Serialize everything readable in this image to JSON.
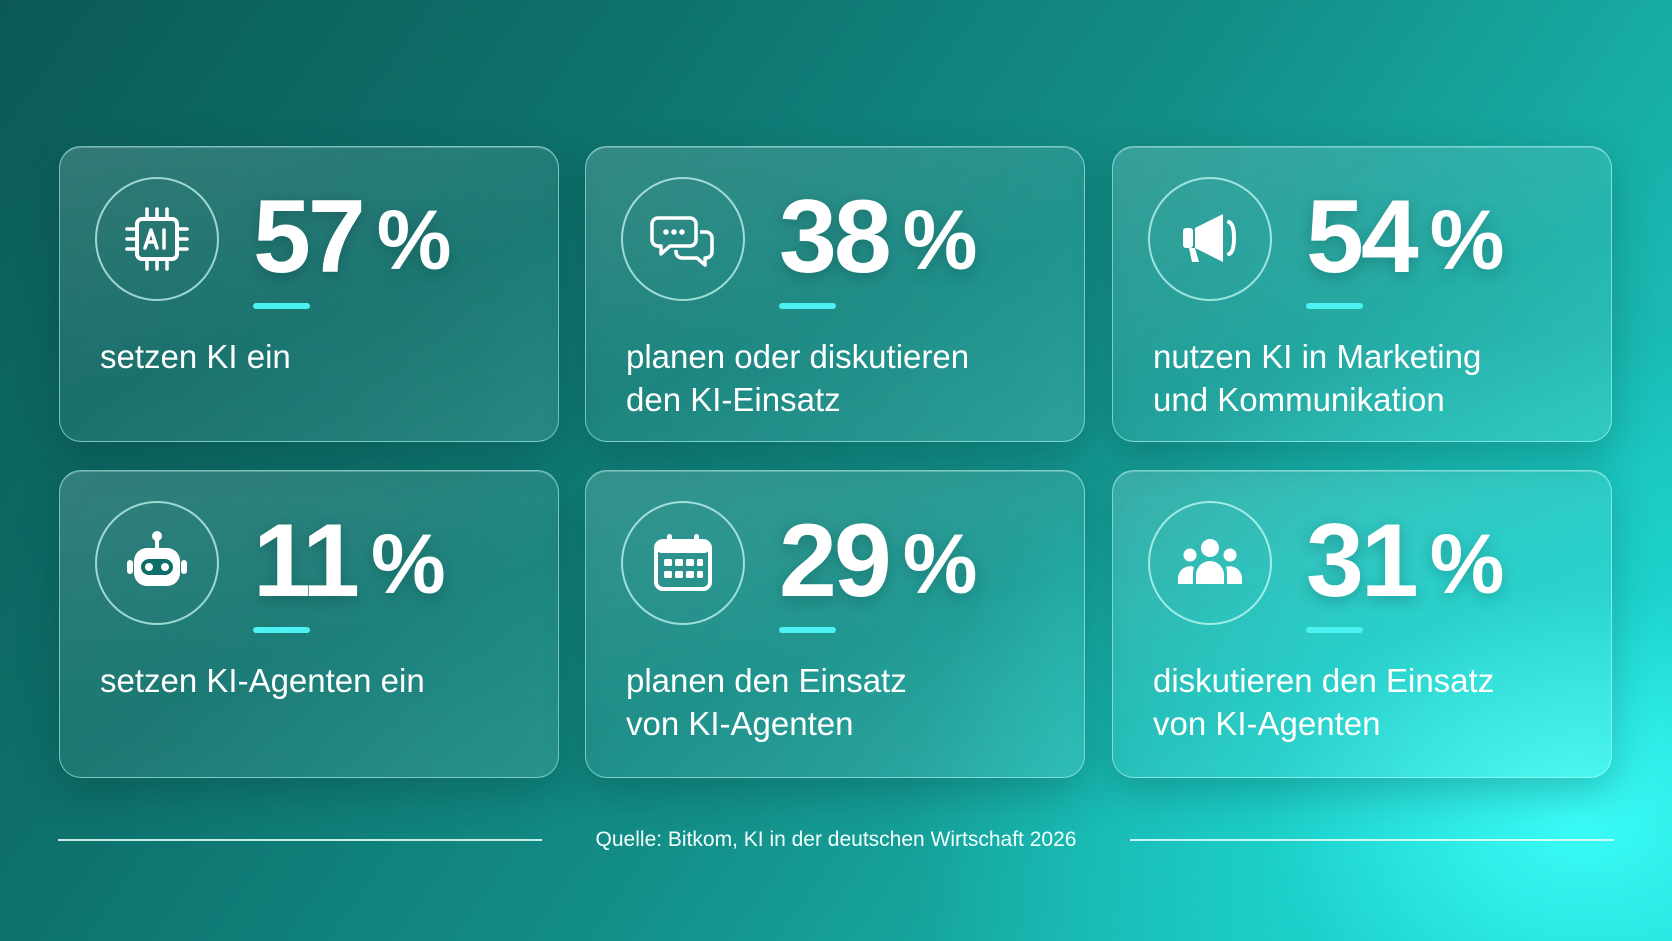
{
  "stats": [
    {
      "icon": "ai-chip-icon",
      "value": "57",
      "unit": "%",
      "lines": [
        "setzen KI ein"
      ]
    },
    {
      "icon": "chat-bubbles-icon",
      "value": "38",
      "unit": "%",
      "lines": [
        "planen oder diskutieren",
        "den KI-Einsatz"
      ]
    },
    {
      "icon": "megaphone-icon",
      "value": "54",
      "unit": "%",
      "lines": [
        "nutzen KI in Marketing",
        "und Kommunikation"
      ]
    },
    {
      "icon": "robot-icon",
      "value": "11",
      "unit": "%",
      "lines": [
        "setzen KI-Agenten ein"
      ]
    },
    {
      "icon": "calendar-icon",
      "value": "29",
      "unit": "%",
      "lines": [
        "planen den Einsatz",
        "von KI-Agenten"
      ]
    },
    {
      "icon": "people-group-icon",
      "value": "31",
      "unit": "%",
      "lines": [
        "diskutieren den Einsatz",
        "von KI-Agenten"
      ]
    }
  ],
  "source": "Quelle: Bitkom, KI in der deutschen Wirtschaft 2026",
  "colors": {
    "accent": "#4cf1f2",
    "bg_dark": "#0b5a56",
    "bg_light": "#2ff3ee"
  }
}
